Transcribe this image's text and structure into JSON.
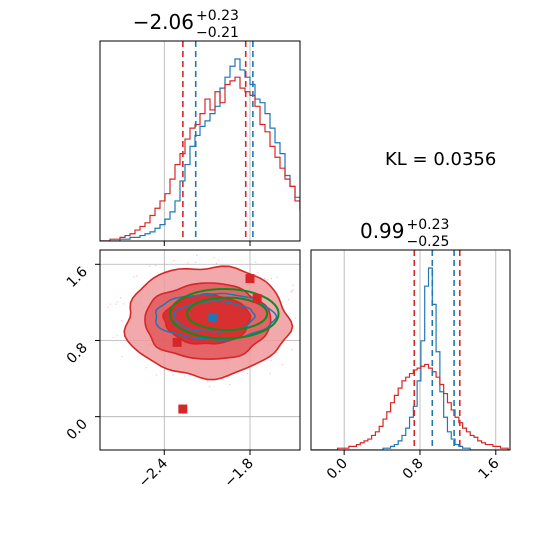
{
  "chart_data": {
    "type": "corner",
    "colors": {
      "red": "#d62728",
      "blue": "#1f77b4",
      "green": "#138a1f",
      "grid": "#b0b0b0",
      "fill_red": "#e8898b"
    },
    "annotation": {
      "text": "KL = 0.0356"
    },
    "panels": [
      {
        "id": "hist-x",
        "type": "histogram",
        "title_main": "−2.06",
        "title_sup": "+0.23",
        "title_sub": "−0.21",
        "xlim": [
          -2.85,
          -1.45
        ],
        "grid_x": [
          -2.4,
          -1.8
        ],
        "series": [
          {
            "name": "",
            "color": "blue",
            "bin_start": -2.85,
            "bin_width": 0.035,
            "counts": [
              0,
              0,
              0,
              0,
              1,
              1,
              2,
              2,
              3,
              4,
              5,
              7,
              9,
              12,
              16,
              22,
              33,
              42,
              52,
              58,
              63,
              66,
              70,
              74,
              84,
              90,
              96,
              100,
              94,
              90,
              86,
              78,
              76,
              70,
              62,
              54,
              48,
              36,
              30,
              24,
              17,
              13,
              9,
              7,
              5,
              3,
              2,
              1,
              1,
              0
            ]
          },
          {
            "name": "",
            "color": "red",
            "bin_start": -2.85,
            "bin_width": 0.035,
            "counts": [
              0,
              0,
              1,
              1,
              2,
              3,
              4,
              6,
              8,
              10,
              14,
              18,
              22,
              26,
              34,
              42,
              48,
              56,
              62,
              64,
              70,
              78,
              72,
              82,
              76,
              86,
              88,
              90,
              84,
              82,
              80,
              74,
              64,
              60,
              52,
              46,
              40,
              34,
              30,
              22,
              18,
              14,
              10,
              8,
              6,
              4,
              2,
              2,
              1,
              0
            ]
          }
        ],
        "vlines": [
          {
            "x": -2.27,
            "color": "red"
          },
          {
            "x": -2.18,
            "color": "blue"
          },
          {
            "x": -1.83,
            "color": "red"
          },
          {
            "x": -1.78,
            "color": "blue"
          }
        ]
      },
      {
        "id": "hist-y",
        "type": "histogram",
        "title_main": "0.99",
        "title_sup": "+0.23",
        "title_sub": "−0.25",
        "xlim": [
          -0.35,
          1.75
        ],
        "xticks": [
          0.0,
          0.8,
          1.6
        ],
        "xtick_labels": [
          "0.0",
          "0.8",
          "1.6"
        ],
        "series": [
          {
            "name": "",
            "color": "blue",
            "bin_start": -0.35,
            "bin_width": 0.04,
            "counts": [
              0,
              0,
              0,
              0,
              0,
              0,
              0,
              0,
              0,
              0,
              0,
              0,
              0,
              0,
              0,
              0,
              0,
              0,
              0,
              1,
              1,
              2,
              3,
              5,
              8,
              12,
              18,
              24,
              38,
              60,
              90,
              100,
              80,
              54,
              32,
              18,
              10,
              6,
              3,
              2,
              1,
              1,
              0,
              0,
              0,
              0,
              0,
              0,
              0,
              0,
              0,
              0,
              0
            ]
          },
          {
            "name": "",
            "color": "red",
            "bin_start": -0.35,
            "bin_width": 0.04,
            "counts": [
              0,
              0,
              0,
              0,
              0,
              0,
              0,
              1,
              1,
              1,
              2,
              2,
              3,
              4,
              5,
              6,
              8,
              10,
              13,
              17,
              21,
              26,
              30,
              34,
              38,
              40,
              42,
              44,
              45,
              46,
              47,
              45,
              43,
              40,
              36,
              31,
              26,
              22,
              18,
              15,
              12,
              10,
              8,
              7,
              5,
              4,
              3,
              3,
              2,
              2,
              1,
              1,
              0
            ]
          }
        ],
        "vlines": [
          {
            "x": 0.74,
            "color": "red"
          },
          {
            "x": 0.93,
            "color": "blue"
          },
          {
            "x": 1.16,
            "color": "blue"
          },
          {
            "x": 1.22,
            "color": "red"
          }
        ]
      },
      {
        "id": "joint",
        "type": "contour",
        "xlim": [
          -2.85,
          -1.45
        ],
        "ylim": [
          -0.35,
          1.75
        ],
        "xticks": [
          -2.4,
          -1.8
        ],
        "xtick_labels": [
          "−2.4",
          "−1.8"
        ],
        "yticks": [
          0.0,
          0.8,
          1.6
        ],
        "ytick_labels": [
          "0.0",
          "0.8",
          "1.6"
        ],
        "red_contours": [
          {
            "level": "outer",
            "cx": -2.1,
            "cy": 1.0,
            "rx": 0.57,
            "ry": 0.58
          },
          {
            "level": "mid",
            "cx": -2.1,
            "cy": 1.0,
            "rx": 0.44,
            "ry": 0.4
          },
          {
            "level": "inner",
            "cx": -2.1,
            "cy": 1.02,
            "rx": 0.3,
            "ry": 0.26
          }
        ],
        "blue_contours": [
          {
            "cx": -2.05,
            "cy": 1.05,
            "rx": 0.42,
            "ry": 0.24
          },
          {
            "cx": -2.05,
            "cy": 1.05,
            "rx": 0.28,
            "ry": 0.16
          }
        ],
        "green_contours": [
          {
            "cx": -1.98,
            "cy": 1.08,
            "rx": 0.38,
            "ry": 0.26
          },
          {
            "cx": -1.96,
            "cy": 1.08,
            "rx": 0.28,
            "ry": 0.17
          }
        ],
        "markers": [
          {
            "x": -1.8,
            "y": 1.45,
            "color": "red"
          },
          {
            "x": -1.75,
            "y": 1.24,
            "color": "red"
          },
          {
            "x": -2.31,
            "y": 0.78,
            "color": "red"
          },
          {
            "x": -2.27,
            "y": 0.08,
            "color": "red"
          },
          {
            "x": -2.06,
            "y": 1.04,
            "color": "blue"
          }
        ]
      }
    ]
  }
}
